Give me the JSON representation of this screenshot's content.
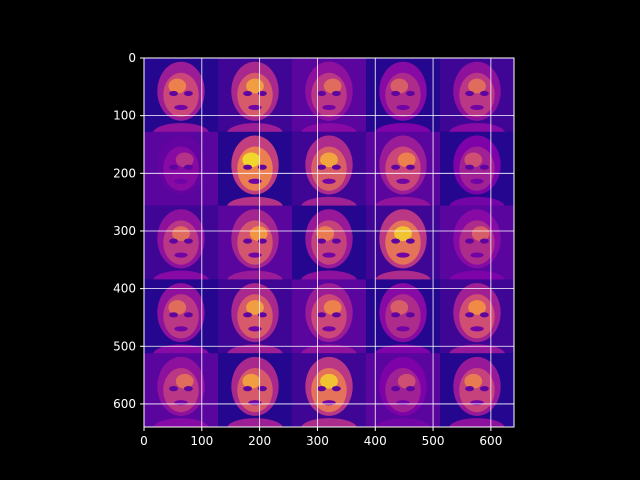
{
  "chart_data": {
    "type": "heatmap",
    "title": "",
    "xlabel": "",
    "ylabel": "",
    "xlim": [
      0,
      640
    ],
    "ylim": [
      640,
      0
    ],
    "x_ticks": [
      "0",
      "100",
      "200",
      "300",
      "400",
      "500",
      "600"
    ],
    "y_ticks": [
      "0",
      "100",
      "200",
      "300",
      "400",
      "500",
      "600"
    ],
    "grid": true,
    "colormap": "plasma",
    "grid_cells": 5,
    "image_tiles": [
      {
        "row": 0,
        "col": 0,
        "subject": "face",
        "intensity": 0.62
      },
      {
        "row": 0,
        "col": 1,
        "subject": "face",
        "intensity": 0.7
      },
      {
        "row": 0,
        "col": 2,
        "subject": "face",
        "intensity": 0.55
      },
      {
        "row": 0,
        "col": 3,
        "subject": "face",
        "intensity": 0.5
      },
      {
        "row": 0,
        "col": 4,
        "subject": "face",
        "intensity": 0.55
      },
      {
        "row": 1,
        "col": 0,
        "subject": "face",
        "intensity": 0.35
      },
      {
        "row": 1,
        "col": 1,
        "subject": "face",
        "intensity": 0.85
      },
      {
        "row": 1,
        "col": 2,
        "subject": "face",
        "intensity": 0.72
      },
      {
        "row": 1,
        "col": 3,
        "subject": "face",
        "intensity": 0.62
      },
      {
        "row": 1,
        "col": 4,
        "subject": "face",
        "intensity": 0.45
      },
      {
        "row": 2,
        "col": 0,
        "subject": "face",
        "intensity": 0.55
      },
      {
        "row": 2,
        "col": 1,
        "subject": "face",
        "intensity": 0.68
      },
      {
        "row": 2,
        "col": 2,
        "subject": "face",
        "intensity": 0.6
      },
      {
        "row": 2,
        "col": 3,
        "subject": "face",
        "intensity": 0.8
      },
      {
        "row": 2,
        "col": 4,
        "subject": "face",
        "intensity": 0.5
      },
      {
        "row": 3,
        "col": 0,
        "subject": "face",
        "intensity": 0.55
      },
      {
        "row": 3,
        "col": 1,
        "subject": "face",
        "intensity": 0.7
      },
      {
        "row": 3,
        "col": 2,
        "subject": "face",
        "intensity": 0.62
      },
      {
        "row": 3,
        "col": 3,
        "subject": "face",
        "intensity": 0.5
      },
      {
        "row": 3,
        "col": 4,
        "subject": "face",
        "intensity": 0.65
      },
      {
        "row": 4,
        "col": 0,
        "subject": "face",
        "intensity": 0.55
      },
      {
        "row": 4,
        "col": 1,
        "subject": "face",
        "intensity": 0.7
      },
      {
        "row": 4,
        "col": 2,
        "subject": "face",
        "intensity": 0.8
      },
      {
        "row": 4,
        "col": 3,
        "subject": "face",
        "intensity": 0.45
      },
      {
        "row": 4,
        "col": 4,
        "subject": "face",
        "intensity": 0.6
      }
    ]
  },
  "colors": {
    "background": "#000000",
    "image_base": "#0d0887",
    "grid": "#ffffff",
    "text": "#ffffff"
  }
}
